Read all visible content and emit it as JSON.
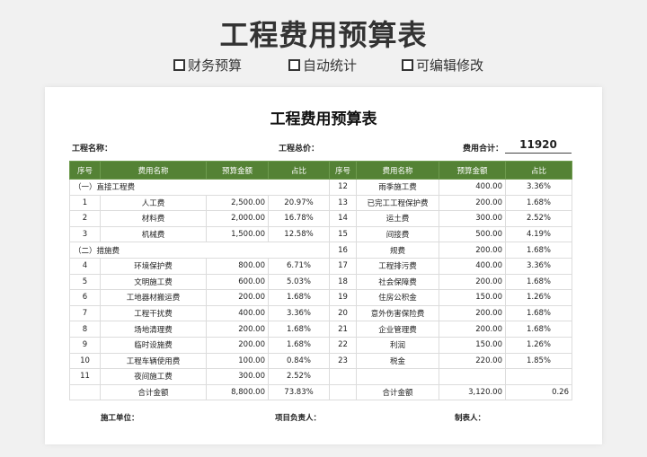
{
  "hero": {
    "title": "工程费用预算表"
  },
  "features": [
    {
      "icon": "checkbox-icon",
      "label": "财务预算"
    },
    {
      "icon": "checkbox-icon",
      "label": "自动统计"
    },
    {
      "icon": "checkbox-icon",
      "label": "可编辑修改"
    }
  ],
  "sheet": {
    "title": "工程费用预算表",
    "project_name_label": "工程名称：",
    "project_price_label": "工程总价：",
    "total_label": "费用合计：",
    "total_value": "11920",
    "headers": [
      "序号",
      "费用名称",
      "预算金额",
      "占比",
      "序号",
      "费用名称",
      "预算金额",
      "占比"
    ],
    "rows": [
      {
        "left": [
          "（一）直接工程费"
        ],
        "right": [
          "12",
          "雨季施工费",
          "400.00",
          "3.36%"
        ]
      },
      {
        "left": [
          "1",
          "人工费",
          "2,500.00",
          "20.97%"
        ],
        "right": [
          "13",
          "已完工工程保护费",
          "200.00",
          "1.68%"
        ]
      },
      {
        "left": [
          "2",
          "材料费",
          "2,000.00",
          "16.78%"
        ],
        "right": [
          "14",
          "运土费",
          "300.00",
          "2.52%"
        ]
      },
      {
        "left": [
          "3",
          "机械费",
          "1,500.00",
          "12.58%"
        ],
        "right": [
          "15",
          "间接费",
          "500.00",
          "4.19%"
        ]
      },
      {
        "left": [
          "（二）措施费"
        ],
        "right": [
          "16",
          "规费",
          "200.00",
          "1.68%"
        ]
      },
      {
        "left": [
          "4",
          "环境保护费",
          "800.00",
          "6.71%"
        ],
        "right": [
          "17",
          "工程排污费",
          "400.00",
          "3.36%"
        ]
      },
      {
        "left": [
          "5",
          "文明施工费",
          "600.00",
          "5.03%"
        ],
        "right": [
          "18",
          "社会保障费",
          "200.00",
          "1.68%"
        ]
      },
      {
        "left": [
          "6",
          "工地器材搬运费",
          "200.00",
          "1.68%"
        ],
        "right": [
          "19",
          "住房公积金",
          "150.00",
          "1.26%"
        ]
      },
      {
        "left": [
          "7",
          "工程干扰费",
          "400.00",
          "3.36%"
        ],
        "right": [
          "20",
          "意外伤害保险费",
          "200.00",
          "1.68%"
        ]
      },
      {
        "left": [
          "8",
          "场地清理费",
          "200.00",
          "1.68%"
        ],
        "right": [
          "21",
          "企业管理费",
          "200.00",
          "1.68%"
        ]
      },
      {
        "left": [
          "9",
          "临时设施费",
          "200.00",
          "1.68%"
        ],
        "right": [
          "22",
          "利润",
          "150.00",
          "1.26%"
        ]
      },
      {
        "left": [
          "10",
          "工程车辆使用费",
          "100.00",
          "0.84%"
        ],
        "right": [
          "23",
          "税金",
          "220.00",
          "1.85%"
        ]
      },
      {
        "left": [
          "11",
          "夜间施工费",
          "300.00",
          "2.52%"
        ],
        "right": [
          "",
          "",
          "",
          ""
        ]
      },
      {
        "left": [
          "",
          "合计金额",
          "8,800.00",
          "73.83%"
        ],
        "right": [
          "",
          "合计金额",
          "3,120.00",
          "0.26"
        ]
      }
    ],
    "footer": {
      "unit_label": "施工单位：",
      "manager_label": "项目负责人：",
      "maker_label": "制表人："
    }
  },
  "colors": {
    "header_bg": "#548235",
    "page_bg": "#f1f1f1"
  }
}
